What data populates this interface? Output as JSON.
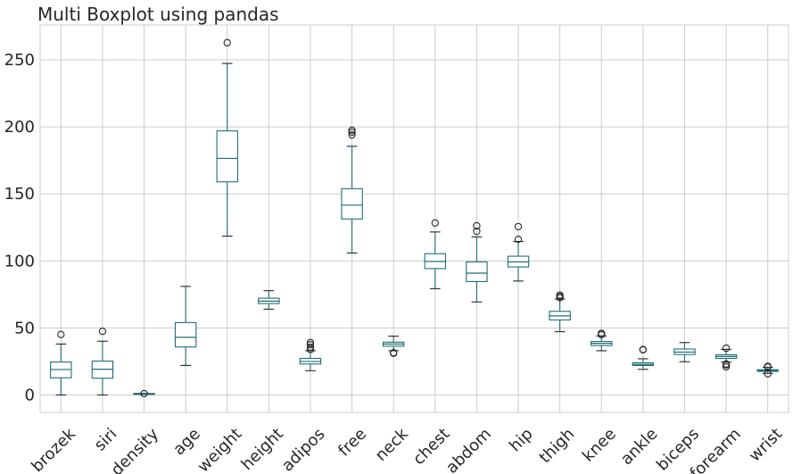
{
  "chart_data": {
    "type": "box",
    "title": "Multi Boxplot using pandas",
    "xlabel": "",
    "ylabel": "",
    "ylim": [
      -13,
      276
    ],
    "yticks": [
      0,
      50,
      100,
      150,
      200,
      250
    ],
    "grid": true,
    "colors": {
      "box": "#1f6f73",
      "cap": "#262626",
      "grid": "#cccccc",
      "text": "#262626"
    },
    "categories": [
      "brozek",
      "siri",
      "density",
      "age",
      "weight",
      "height",
      "adipos",
      "free",
      "neck",
      "chest",
      "abdom",
      "hip",
      "thigh",
      "knee",
      "ankle",
      "biceps",
      "forearm",
      "wrist"
    ],
    "boxes": [
      {
        "q1": 12.8,
        "median": 19.0,
        "q3": 24.6,
        "whislo": 0.0,
        "whishi": 38.0,
        "fliers": [
          45.1
        ]
      },
      {
        "q1": 12.5,
        "median": 19.2,
        "q3": 25.3,
        "whislo": 0.0,
        "whishi": 40.1,
        "fliers": [
          47.5
        ]
      },
      {
        "q1": 1.04,
        "median": 1.055,
        "q3": 1.07,
        "whislo": 0.99,
        "whishi": 1.11,
        "fliers": []
      },
      {
        "q1": 35.8,
        "median": 43.0,
        "q3": 54.0,
        "whislo": 22.0,
        "whishi": 81.0,
        "fliers": []
      },
      {
        "q1": 159.0,
        "median": 176.5,
        "q3": 197.0,
        "whislo": 118.5,
        "whishi": 247.3,
        "fliers": [
          262.8
        ]
      },
      {
        "q1": 68.2,
        "median": 70.0,
        "q3": 72.2,
        "whislo": 64.0,
        "whishi": 77.8,
        "fliers": []
      },
      {
        "q1": 23.1,
        "median": 25.0,
        "q3": 27.3,
        "whislo": 18.1,
        "whishi": 33.0,
        "fliers": [
          34.0,
          35.6,
          37.5,
          39.1
        ]
      },
      {
        "q1": 131.3,
        "median": 141.6,
        "q3": 153.9,
        "whislo": 105.9,
        "whishi": 185.5,
        "fliers": [
          194.0,
          196.0,
          197.5
        ]
      },
      {
        "q1": 36.4,
        "median": 38.0,
        "q3": 39.4,
        "whislo": 33.0,
        "whishi": 43.9,
        "fliers": [
          31.1,
          31.5
        ]
      },
      {
        "q1": 94.3,
        "median": 99.6,
        "q3": 105.4,
        "whislo": 79.3,
        "whishi": 121.6,
        "fliers": [
          128.3
        ]
      },
      {
        "q1": 84.6,
        "median": 90.9,
        "q3": 99.3,
        "whislo": 69.4,
        "whishi": 117.9,
        "fliers": [
          122.1,
          126.2
        ]
      },
      {
        "q1": 95.5,
        "median": 99.3,
        "q3": 103.5,
        "whislo": 85.0,
        "whishi": 114.5,
        "fliers": [
          116.1,
          125.6
        ]
      },
      {
        "q1": 56.0,
        "median": 59.0,
        "q3": 62.4,
        "whislo": 47.2,
        "whishi": 71.5,
        "fliers": [
          72.5,
          73.5,
          74.5
        ]
      },
      {
        "q1": 36.9,
        "median": 38.5,
        "q3": 39.9,
        "whislo": 33.0,
        "whishi": 44.0,
        "fliers": [
          45.0,
          46.0
        ]
      },
      {
        "q1": 22.0,
        "median": 22.8,
        "q3": 24.0,
        "whislo": 19.1,
        "whishi": 27.0,
        "fliers": [
          33.7,
          33.9
        ]
      },
      {
        "q1": 30.2,
        "median": 32.0,
        "q3": 34.3,
        "whislo": 24.8,
        "whishi": 39.1,
        "fliers": []
      },
      {
        "q1": 27.3,
        "median": 28.7,
        "q3": 30.0,
        "whislo": 24.6,
        "whishi": 34.0,
        "fliers": [
          21.0,
          22.5,
          23.1,
          34.9
        ]
      },
      {
        "q1": 17.6,
        "median": 18.3,
        "q3": 18.8,
        "whislo": 16.1,
        "whishi": 20.7,
        "fliers": [
          15.8,
          21.4,
          20.9
        ]
      }
    ]
  }
}
